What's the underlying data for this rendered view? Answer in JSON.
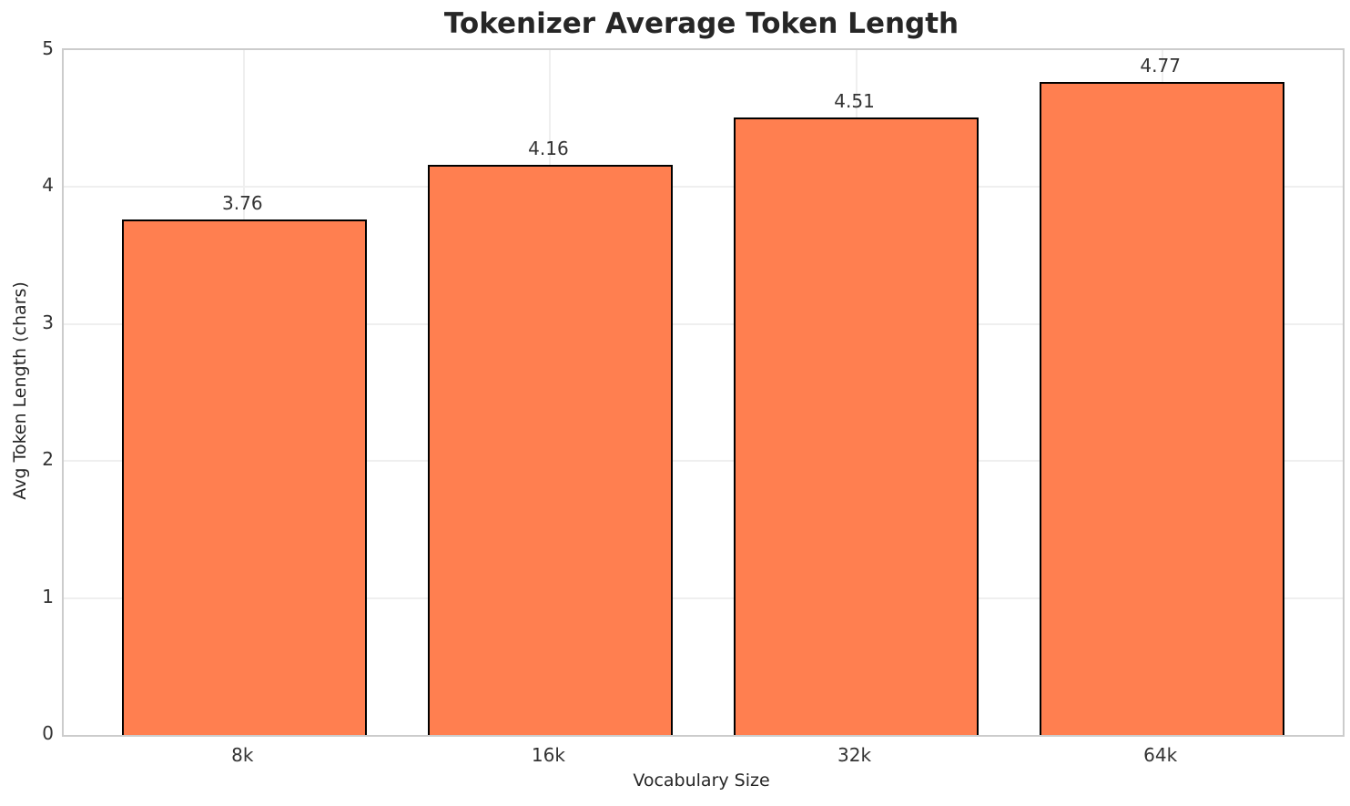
{
  "chart_data": {
    "type": "bar",
    "title": "Tokenizer Average Token Length",
    "xlabel": "Vocabulary Size",
    "ylabel": "Avg Token Length (chars)",
    "categories": [
      "8k",
      "16k",
      "32k",
      "64k"
    ],
    "values": [
      3.76,
      4.16,
      4.51,
      4.77
    ],
    "value_labels": [
      "3.76",
      "4.16",
      "4.51",
      "4.77"
    ],
    "ylim": [
      0,
      5
    ],
    "yticks": [
      0,
      1,
      2,
      3,
      4,
      5
    ],
    "ytick_labels": [
      "0",
      "1",
      "2",
      "3",
      "4",
      "5"
    ],
    "grid": true,
    "legend_position": "none",
    "colors": {
      "bar_fill": "#FF7F50",
      "bar_edge": "#000000",
      "grid_line": "#efefef",
      "spine": "#cccccc",
      "title_text": "#262626",
      "tick_text": "#333333",
      "background": "#ffffff"
    }
  }
}
